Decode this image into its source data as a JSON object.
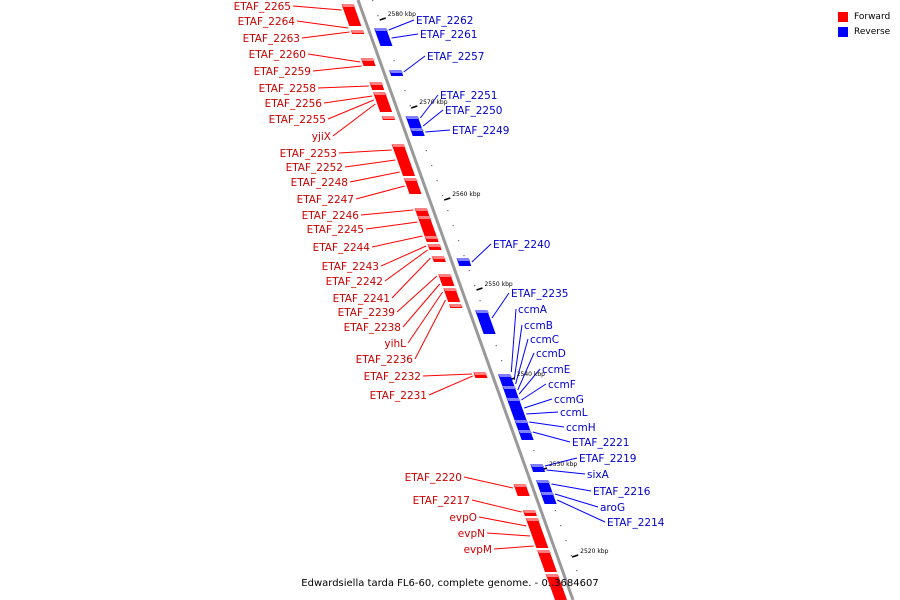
{
  "legend": {
    "forward_label": "Forward",
    "reverse_label": "Reverse",
    "forward_color": "#ff0000",
    "reverse_color": "#0000ff"
  },
  "footer": {
    "caption": "Edwardsiella tarda FL6-60, complete genome. - 0..3684607"
  },
  "ruler": [
    {
      "label": "2580 kbp"
    },
    {
      "label": "2570 kbp"
    },
    {
      "label": "2560 kbp"
    },
    {
      "label": "2550 kbp"
    },
    {
      "label": "2540 kbp"
    },
    {
      "label": "2530 kbp"
    },
    {
      "label": "2520 kbp"
    }
  ],
  "forward_genes": [
    "ETAF_2265",
    "ETAF_2264",
    "ETAF_2263",
    "ETAF_2260",
    "ETAF_2259",
    "ETAF_2258",
    "ETAF_2256",
    "ETAF_2255",
    "yjiX",
    "ETAF_2253",
    "ETAF_2252",
    "ETAF_2248",
    "ETAF_2247",
    "ETAF_2246",
    "ETAF_2245",
    "ETAF_2244",
    "ETAF_2243",
    "ETAF_2242",
    "ETAF_2241",
    "ETAF_2239",
    "ETAF_2238",
    "yihL",
    "ETAF_2236",
    "ETAF_2232",
    "ETAF_2231",
    "ETAF_2220",
    "ETAF_2217",
    "evpO",
    "evpN",
    "evpM"
  ],
  "reverse_genes": [
    "ETAF_2262",
    "ETAF_2261",
    "ETAF_2257",
    "ETAF_2251",
    "ETAF_2250",
    "ETAF_2249",
    "ETAF_2240",
    "ETAF_2235",
    "ccmA",
    "ccmB",
    "ccmC",
    "ccmD",
    "ccmE",
    "ccmF",
    "ccmG",
    "ccmL",
    "ccmH",
    "ETAF_2221",
    "ETAF_2219",
    "sixA",
    "ETAF_2216",
    "aroG",
    "ETAF_2214"
  ]
}
